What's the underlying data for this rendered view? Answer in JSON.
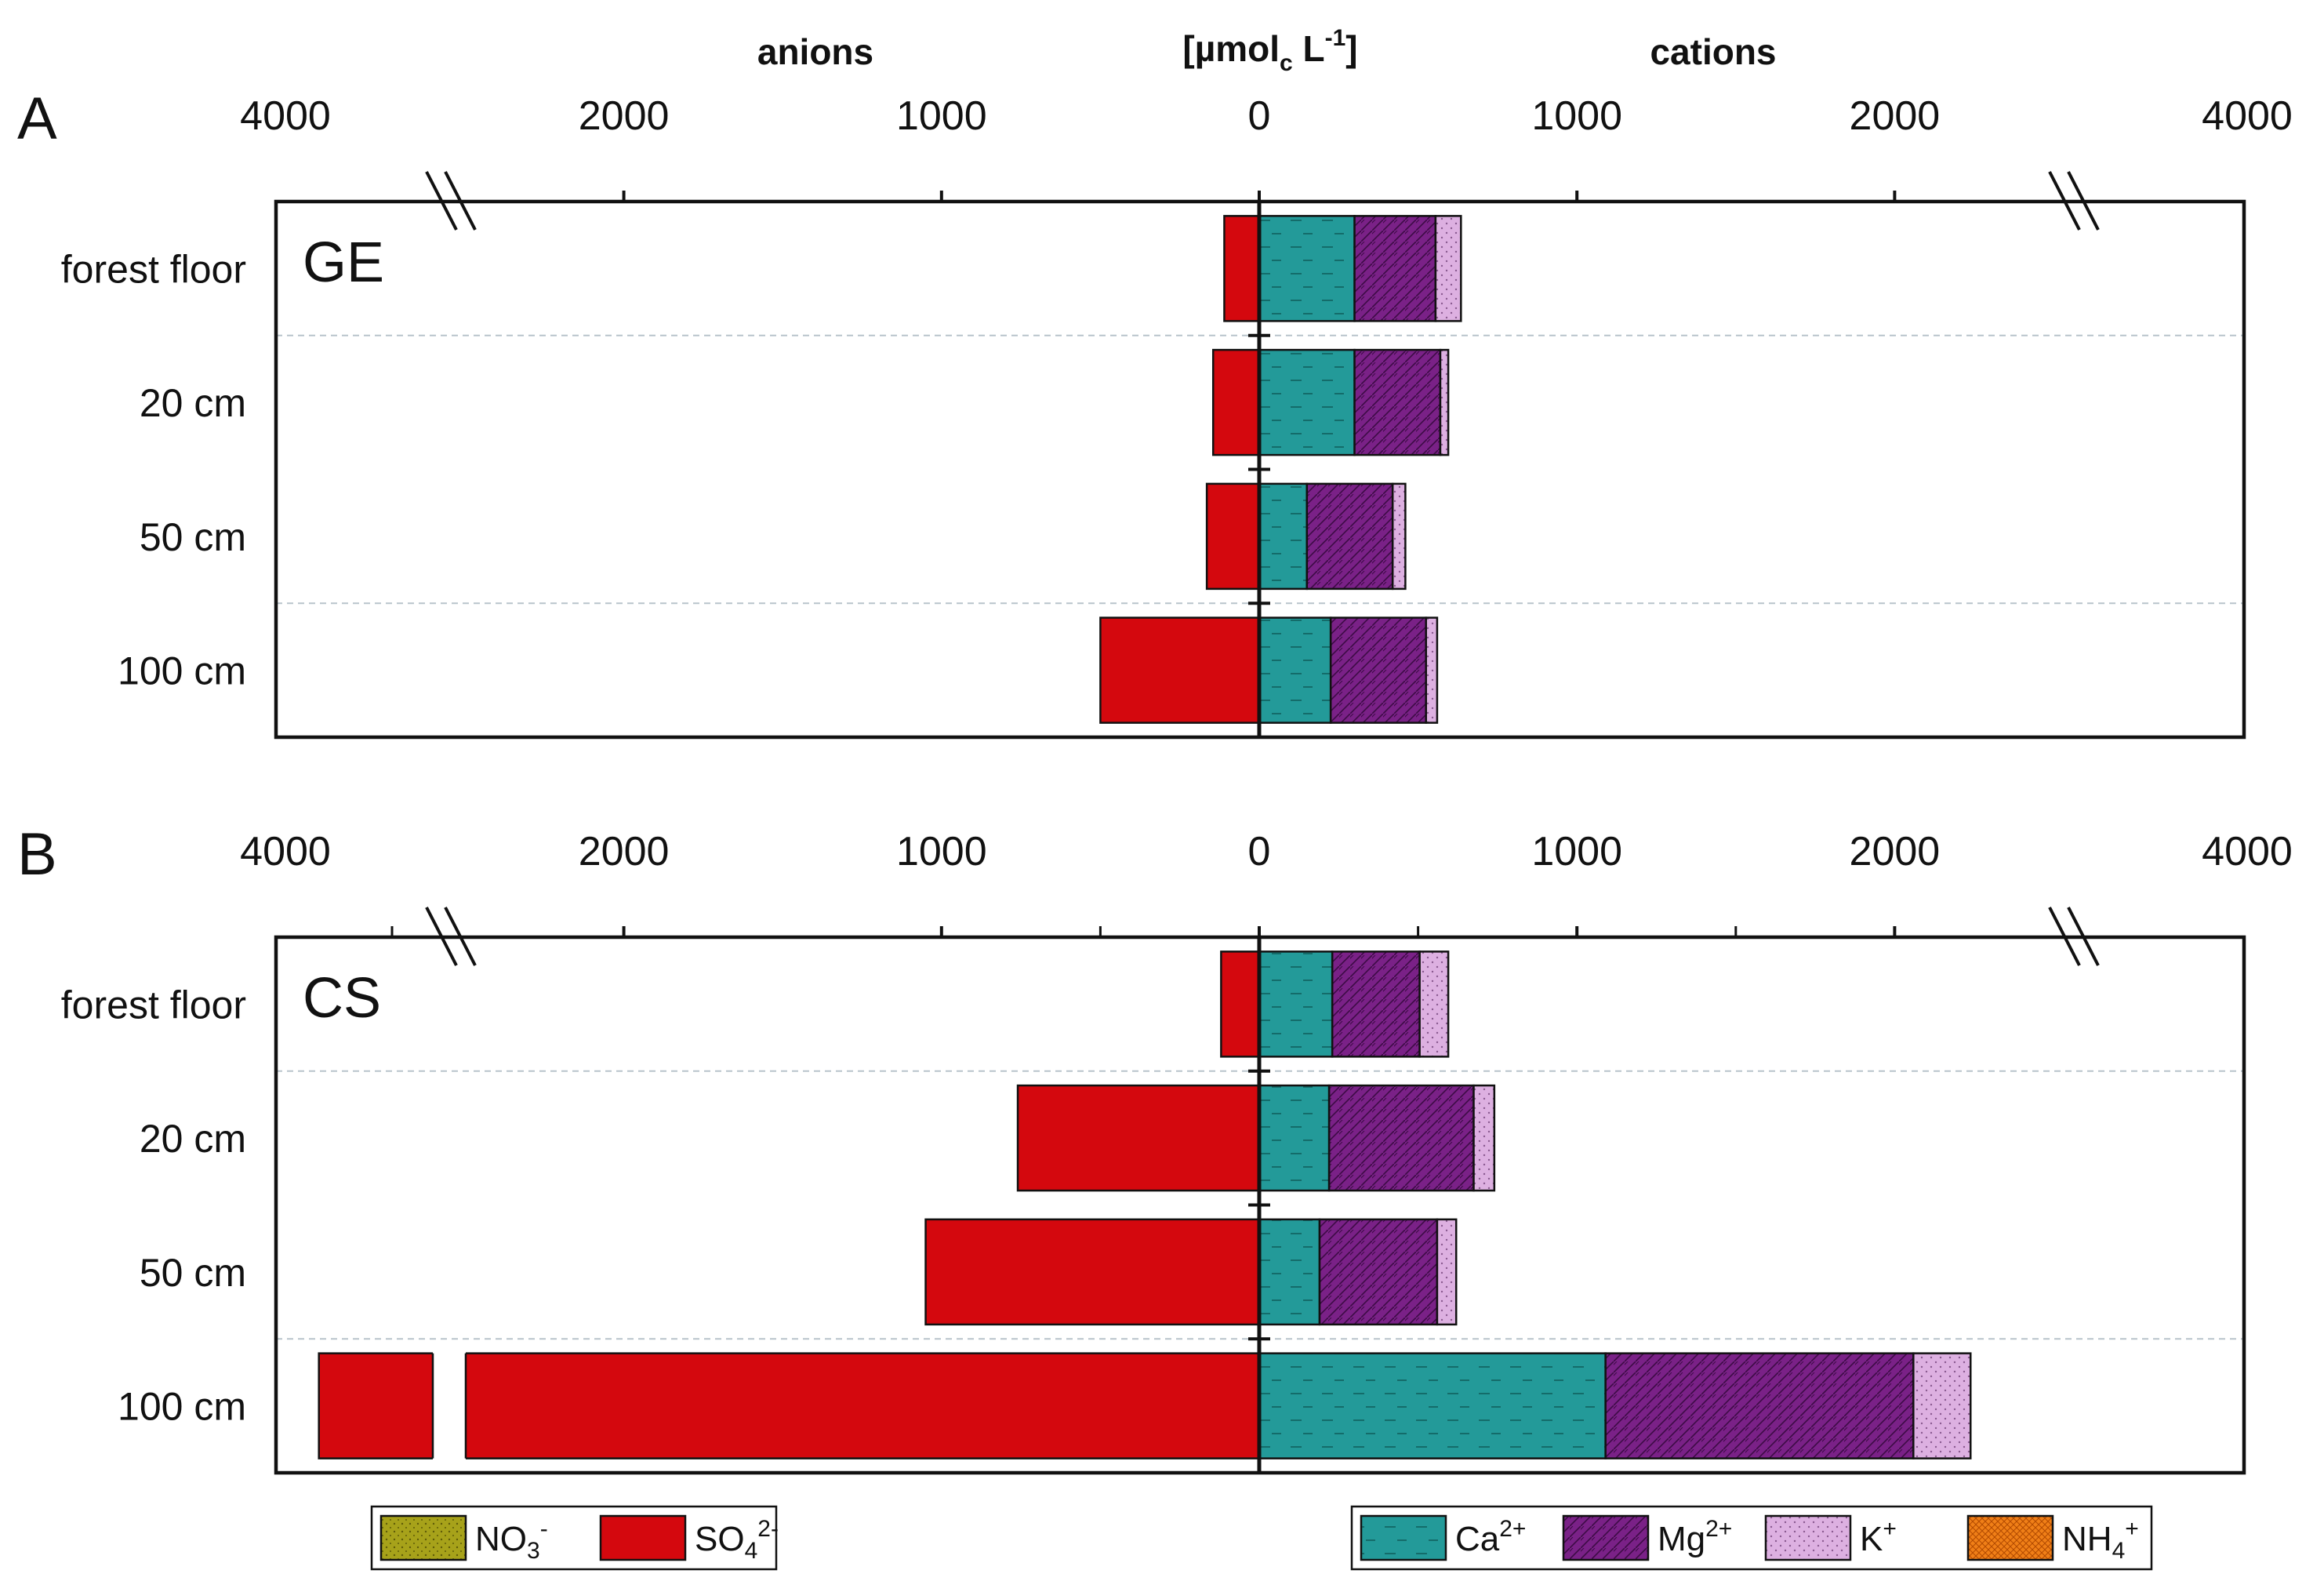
{
  "header": {
    "anions_label": "anions",
    "unit_main": "[µmol",
    "unit_sub": "c",
    "unit_tail": " L",
    "unit_sup": "-1",
    "unit_close": "]",
    "cations_label": "cations"
  },
  "chart_data": {
    "type": "bar",
    "orientation": "horizontal",
    "stacked": true,
    "diverging": true,
    "axis": {
      "tick_labels": [
        "4000",
        "2000",
        "1000",
        "0",
        "1000",
        "2000",
        "4000"
      ],
      "tick_values": [
        -4000,
        -2000,
        -1000,
        0,
        1000,
        2000,
        4000
      ],
      "axis_break_between": [
        2000,
        4000
      ],
      "range_linear": [
        -2500,
        2500
      ],
      "range_total": [
        -4000,
        4000
      ]
    },
    "categories": [
      "forest floor",
      "20 cm",
      "50 cm",
      "100 cm"
    ],
    "panels": [
      {
        "panel": "A",
        "site": "GE",
        "anions": [
          {
            "name": "NO3-",
            "values": [
              0,
              0,
              0,
              0
            ]
          },
          {
            "name": "SO42-",
            "values": [
              110,
              145,
              165,
              500
            ]
          }
        ],
        "cations": [
          {
            "name": "Ca2+",
            "values": [
              300,
              300,
              150,
              225
            ]
          },
          {
            "name": "Mg2+",
            "values": [
              255,
              270,
              270,
              300
            ]
          },
          {
            "name": "K+",
            "values": [
              80,
              25,
              40,
              35
            ]
          },
          {
            "name": "NH4+",
            "values": [
              0,
              0,
              0,
              0
            ]
          }
        ]
      },
      {
        "panel": "B",
        "site": "CS",
        "anions": [
          {
            "name": "NO3-",
            "values": [
              0,
              0,
              0,
              0
            ]
          },
          {
            "name": "SO42-",
            "values": [
              120,
              760,
              1050,
              3650
            ]
          }
        ],
        "cations": [
          {
            "name": "Ca2+",
            "values": [
              230,
              220,
              190,
              1090
            ]
          },
          {
            "name": "Mg2+",
            "values": [
              275,
              455,
              370,
              970
            ]
          },
          {
            "name": "K+",
            "values": [
              90,
              65,
              60,
              180
            ]
          },
          {
            "name": "NH4+",
            "values": [
              0,
              0,
              0,
              0
            ]
          }
        ]
      }
    ],
    "colors": {
      "NO3-": "#a7a21a",
      "SO42-": "#d4080e",
      "Ca2+": "#239a99",
      "Mg2+": "#7a2187",
      "K+": "#ddb0e1",
      "NH4+": "#f07f17"
    },
    "legend": {
      "placement": "bottom",
      "anion_items": [
        {
          "key": "NO3-",
          "base": "NO",
          "sub": "3",
          "sup": "-"
        },
        {
          "key": "SO42-",
          "base": "SO",
          "sub": "4",
          "sup": "2-"
        }
      ],
      "cation_items": [
        {
          "key": "Ca2+",
          "base": "Ca",
          "sub": "",
          "sup": "2+"
        },
        {
          "key": "Mg2+",
          "base": "Mg",
          "sub": "",
          "sup": "2+"
        },
        {
          "key": "K+",
          "base": "K",
          "sub": "",
          "sup": "+"
        },
        {
          "key": "NH4+",
          "base": "NH",
          "sub": "4",
          "sup": "+"
        }
      ]
    }
  }
}
